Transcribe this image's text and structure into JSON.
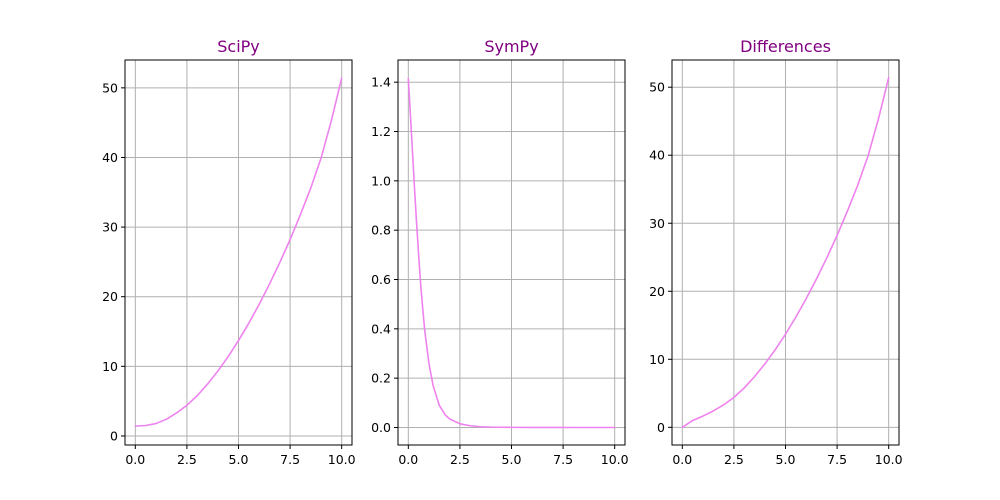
{
  "colors": {
    "title": "#800080",
    "line": "#ee82ee",
    "grid": "#b0b0b0"
  },
  "chart_data": [
    {
      "type": "line",
      "title": "SciPy",
      "xlim": [
        -0.5,
        10.5
      ],
      "ylim": [
        -1.3,
        54
      ],
      "xticks": [
        0,
        2.5,
        5,
        7.5,
        10
      ],
      "xtick_labels": [
        "0.0",
        "2.5",
        "5.0",
        "7.5",
        "10.0"
      ],
      "yticks": [
        0,
        10,
        20,
        30,
        40,
        50
      ],
      "ytick_labels": [
        "0",
        "10",
        "20",
        "30",
        "40",
        "50"
      ],
      "grid": true,
      "series": [
        {
          "x": [
            0,
            0.5,
            1,
            1.5,
            2,
            2.5,
            3,
            3.5,
            4,
            4.5,
            5,
            5.5,
            6,
            6.5,
            7,
            7.5,
            8,
            8.5,
            9,
            9.5,
            10
          ],
          "y": [
            1.41,
            1.5,
            1.78,
            2.39,
            3.3,
            4.4,
            5.79,
            7.45,
            9.32,
            11.4,
            13.7,
            16.2,
            18.9,
            21.8,
            24.9,
            28.2,
            31.8,
            35.6,
            39.9,
            45.3,
            51.4
          ]
        }
      ]
    },
    {
      "type": "line",
      "title": "SymPy",
      "xlim": [
        -0.5,
        10.5
      ],
      "ylim": [
        -0.071,
        1.49
      ],
      "xticks": [
        0,
        2.5,
        5,
        7.5,
        10
      ],
      "xtick_labels": [
        "0.0",
        "2.5",
        "5.0",
        "7.5",
        "10.0"
      ],
      "yticks": [
        0,
        0.2,
        0.4,
        0.6,
        0.8,
        1.0,
        1.2,
        1.4
      ],
      "ytick_labels": [
        "0.0",
        "0.2",
        "0.4",
        "0.6",
        "0.8",
        "1.0",
        "1.2",
        "1.4"
      ],
      "grid": true,
      "series": [
        {
          "x": [
            0,
            0.1,
            0.2,
            0.3,
            0.4,
            0.5,
            0.6,
            0.7,
            0.8,
            1.0,
            1.2,
            1.5,
            1.8,
            2.0,
            2.5,
            3.0,
            3.5,
            4.0,
            5.0,
            6.0,
            7.0,
            8.0,
            9.0,
            10.0
          ],
          "y": [
            1.414,
            1.27,
            1.12,
            0.97,
            0.83,
            0.7,
            0.58,
            0.48,
            0.39,
            0.26,
            0.17,
            0.09,
            0.05,
            0.035,
            0.015,
            0.007,
            0.003,
            0.0015,
            0.0005,
            0.0002,
            0.0001,
            0,
            0,
            0
          ]
        }
      ]
    },
    {
      "type": "line",
      "title": "Differences",
      "xlim": [
        -0.5,
        10.5
      ],
      "ylim": [
        -2.6,
        54
      ],
      "xticks": [
        0,
        2.5,
        5,
        7.5,
        10
      ],
      "xtick_labels": [
        "0.0",
        "2.5",
        "5.0",
        "7.5",
        "10.0"
      ],
      "yticks": [
        0,
        10,
        20,
        30,
        40,
        50
      ],
      "ytick_labels": [
        "0",
        "10",
        "20",
        "30",
        "40",
        "50"
      ],
      "grid": true,
      "series": [
        {
          "x": [
            0,
            0.25,
            0.5,
            1,
            1.5,
            2,
            2.5,
            3,
            3.5,
            4,
            4.5,
            5,
            5.5,
            6,
            6.5,
            7,
            7.5,
            8,
            8.5,
            9,
            9.5,
            10
          ],
          "y": [
            0,
            0.5,
            1.0,
            1.65,
            2.4,
            3.3,
            4.4,
            5.79,
            7.45,
            9.32,
            11.4,
            13.7,
            16.2,
            18.9,
            21.8,
            24.9,
            28.2,
            31.8,
            35.6,
            39.9,
            45.3,
            51.4
          ]
        }
      ]
    }
  ]
}
